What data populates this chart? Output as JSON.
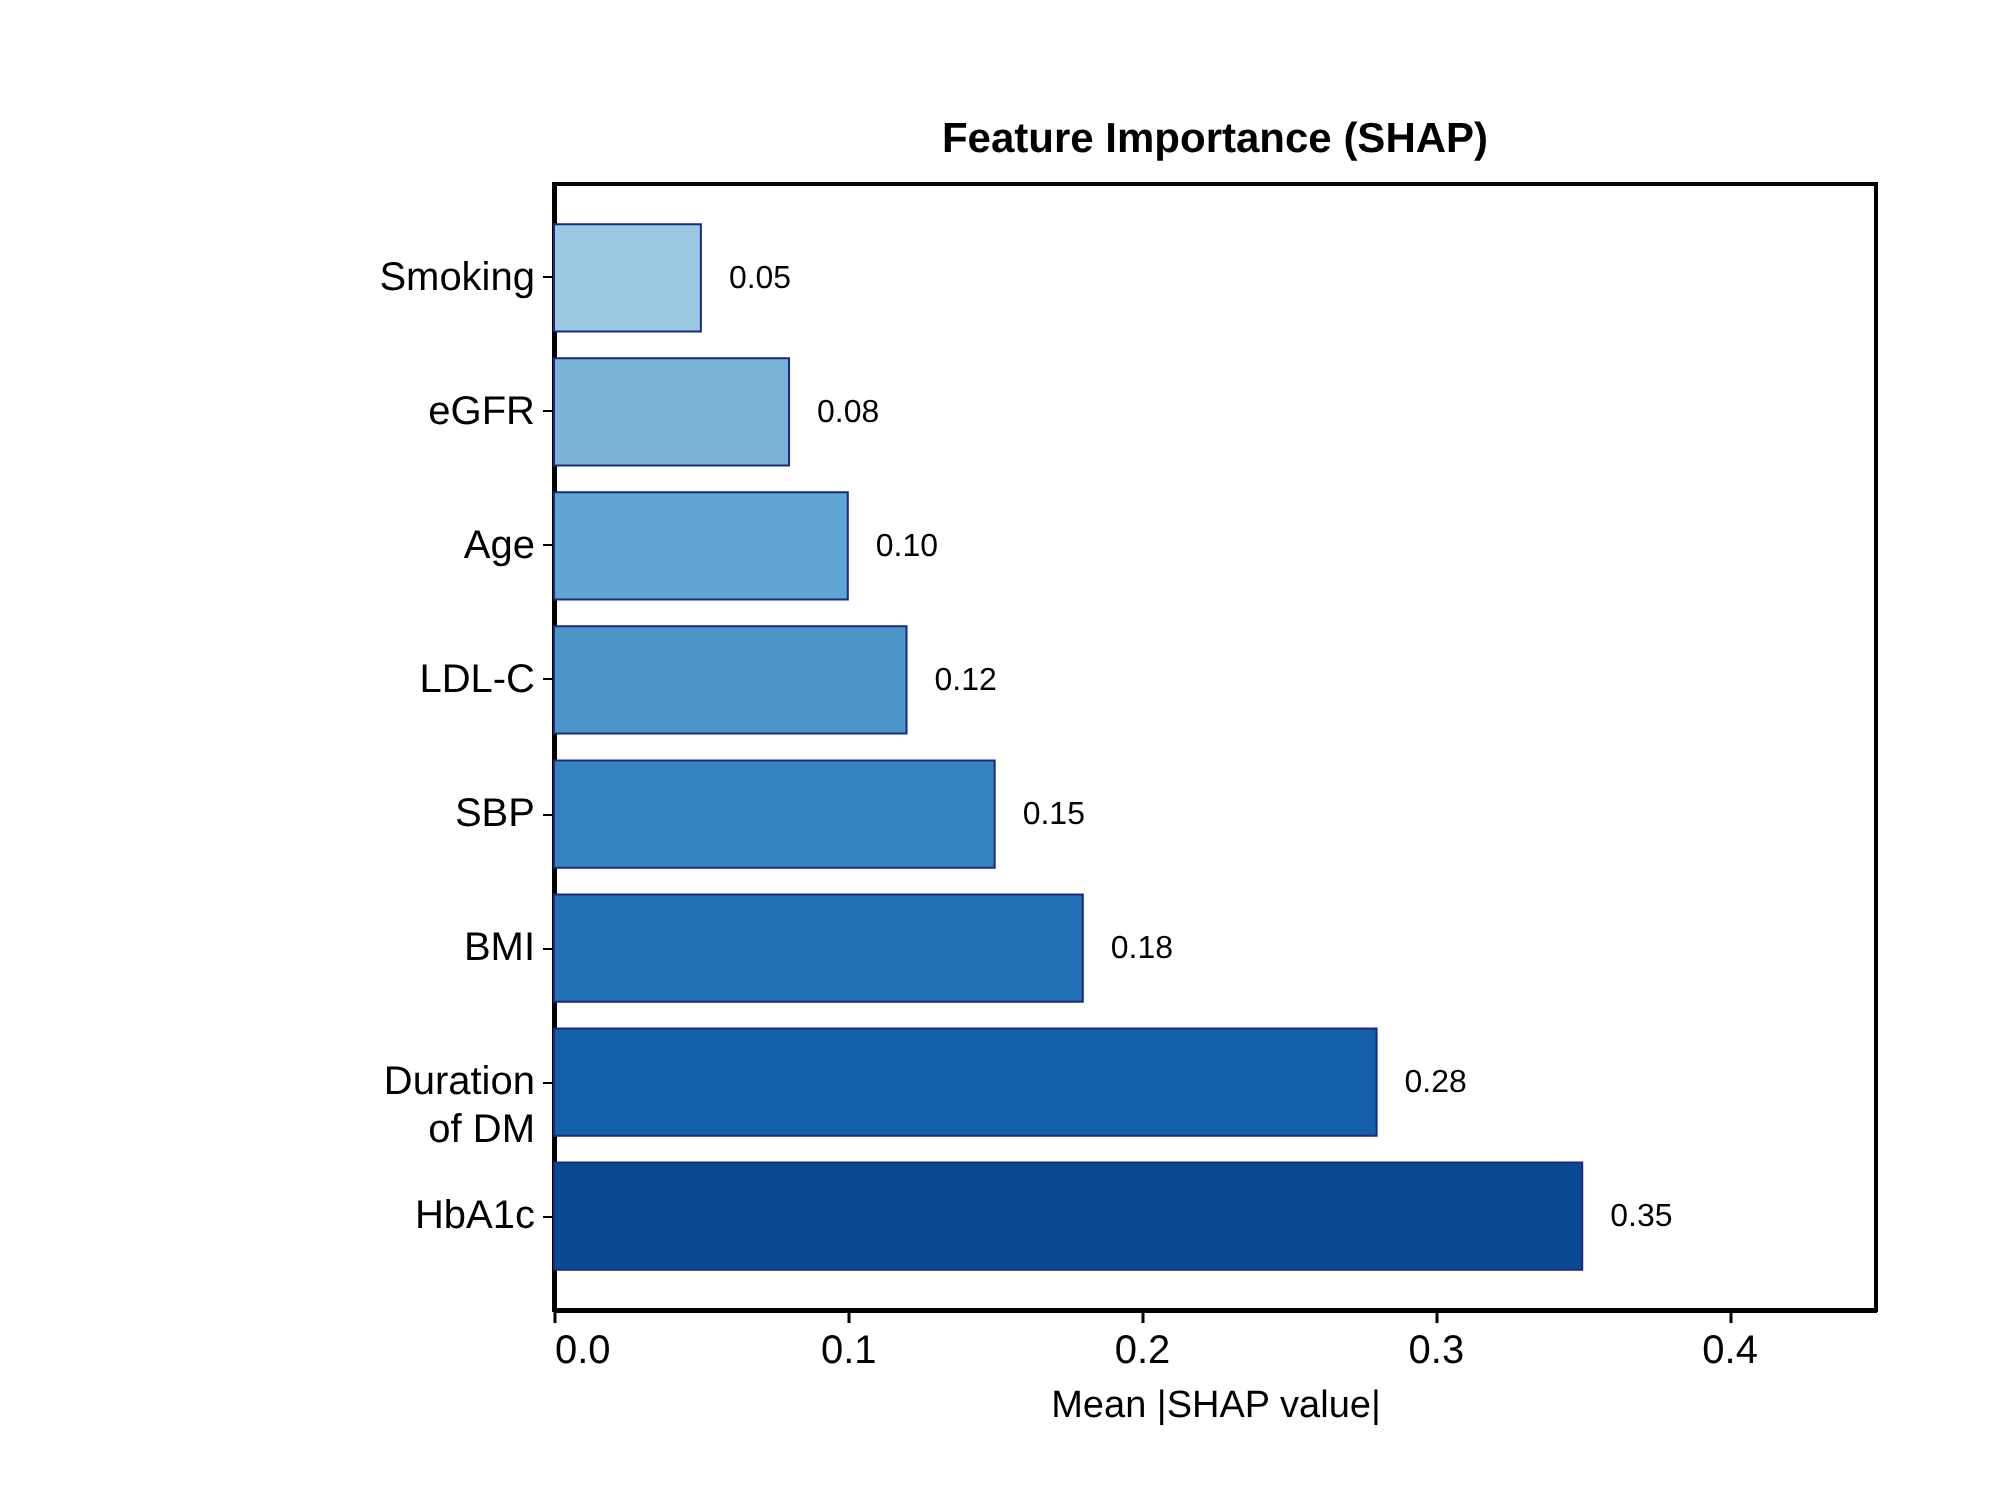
{
  "chart_data": {
    "type": "bar",
    "orientation": "horizontal",
    "title": "Feature Importance (SHAP)",
    "xlabel": "Mean |SHAP value|",
    "categories": [
      "Smoking",
      "eGFR",
      "Age",
      "LDL-C",
      "SBP",
      "BMI",
      "Duration\nof DM",
      "HbA1c"
    ],
    "values": [
      0.05,
      0.08,
      0.1,
      0.12,
      0.15,
      0.18,
      0.28,
      0.35
    ],
    "colors": [
      "#9ac8e0",
      "#7ab5d9",
      "#5fa5d1",
      "#4a94c8",
      "#3584c0",
      "#2470b6",
      "#1460a8",
      "#084b93"
    ],
    "value_labels": [
      "0.05",
      "0.08",
      "0.10",
      "0.12",
      "0.15",
      "0.18",
      "0.28",
      "0.35"
    ],
    "xlim": [
      0,
      0.45
    ],
    "xticks": [
      {
        "value": 0,
        "label": "0.0"
      },
      0.1,
      0.2,
      0.3,
      0.4
    ]
  }
}
